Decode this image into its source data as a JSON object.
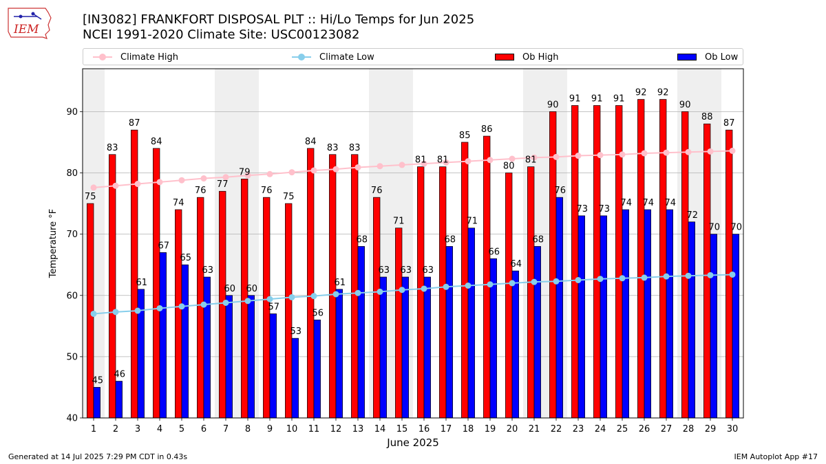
{
  "header": {
    "logo_text": "IEM",
    "title_line1": "[IN3082] FRANKFORT DISPOSAL PLT :: Hi/Lo Temps for Jun 2025",
    "title_line2": "NCEI 1991-2020 Climate Site: USC00123082"
  },
  "legend": {
    "climate_high": "Climate High",
    "climate_low": "Climate Low",
    "ob_high": "Ob High",
    "ob_low": "Ob Low"
  },
  "footer": {
    "left": "Generated at 14 Jul 2025 7:29 PM CDT in 0.43s",
    "right": "IEM Autoplot App #17"
  },
  "colors": {
    "ob_high": "#ff0000",
    "ob_low": "#0000ff",
    "climate_high": "#ffc0cb",
    "climate_low": "#87ceeb",
    "weekend_band": "#efefef",
    "grid": "#b0b0b0"
  },
  "chart_data": {
    "type": "bar",
    "xlabel": "June 2025",
    "ylabel": "Temperature °F",
    "ylim": [
      40,
      97
    ],
    "yticks": [
      40,
      50,
      60,
      70,
      80,
      90
    ],
    "grid": "horizontal",
    "legend_placement": "top",
    "weekend_days": [
      1,
      7,
      8,
      14,
      15,
      21,
      22,
      28,
      29
    ],
    "categories": [
      "1",
      "2",
      "3",
      "4",
      "5",
      "6",
      "7",
      "8",
      "9",
      "10",
      "11",
      "12",
      "13",
      "14",
      "15",
      "16",
      "17",
      "18",
      "19",
      "20",
      "21",
      "22",
      "23",
      "24",
      "25",
      "26",
      "27",
      "28",
      "29",
      "30"
    ],
    "series": [
      {
        "name": "Ob High",
        "kind": "bar",
        "values": [
          75,
          83,
          87,
          84,
          74,
          76,
          77,
          79,
          76,
          75,
          84,
          83,
          83,
          76,
          71,
          81,
          81,
          85,
          86,
          80,
          81,
          90,
          91,
          91,
          91,
          92,
          92,
          90,
          88,
          87
        ]
      },
      {
        "name": "Ob Low",
        "kind": "bar",
        "values": [
          45,
          46,
          61,
          67,
          65,
          63,
          60,
          60,
          57,
          53,
          56,
          61,
          68,
          63,
          63,
          63,
          68,
          71,
          66,
          64,
          68,
          76,
          73,
          73,
          74,
          74,
          74,
          72,
          70,
          70
        ]
      },
      {
        "name": "Climate High",
        "kind": "line",
        "values": [
          77.6,
          77.9,
          78.2,
          78.5,
          78.8,
          79.1,
          79.3,
          79.6,
          79.8,
          80.1,
          80.4,
          80.6,
          80.9,
          81.1,
          81.3,
          81.5,
          81.7,
          81.9,
          82.1,
          82.3,
          82.5,
          82.6,
          82.8,
          82.9,
          83.0,
          83.2,
          83.3,
          83.4,
          83.5,
          83.6
        ]
      },
      {
        "name": "Climate Low",
        "kind": "line",
        "values": [
          57.0,
          57.3,
          57.5,
          57.9,
          58.2,
          58.5,
          58.8,
          59.1,
          59.4,
          59.7,
          59.9,
          60.2,
          60.4,
          60.6,
          60.9,
          61.1,
          61.4,
          61.6,
          61.8,
          62.0,
          62.2,
          62.3,
          62.5,
          62.7,
          62.8,
          62.9,
          63.1,
          63.2,
          63.3,
          63.4
        ]
      }
    ]
  }
}
